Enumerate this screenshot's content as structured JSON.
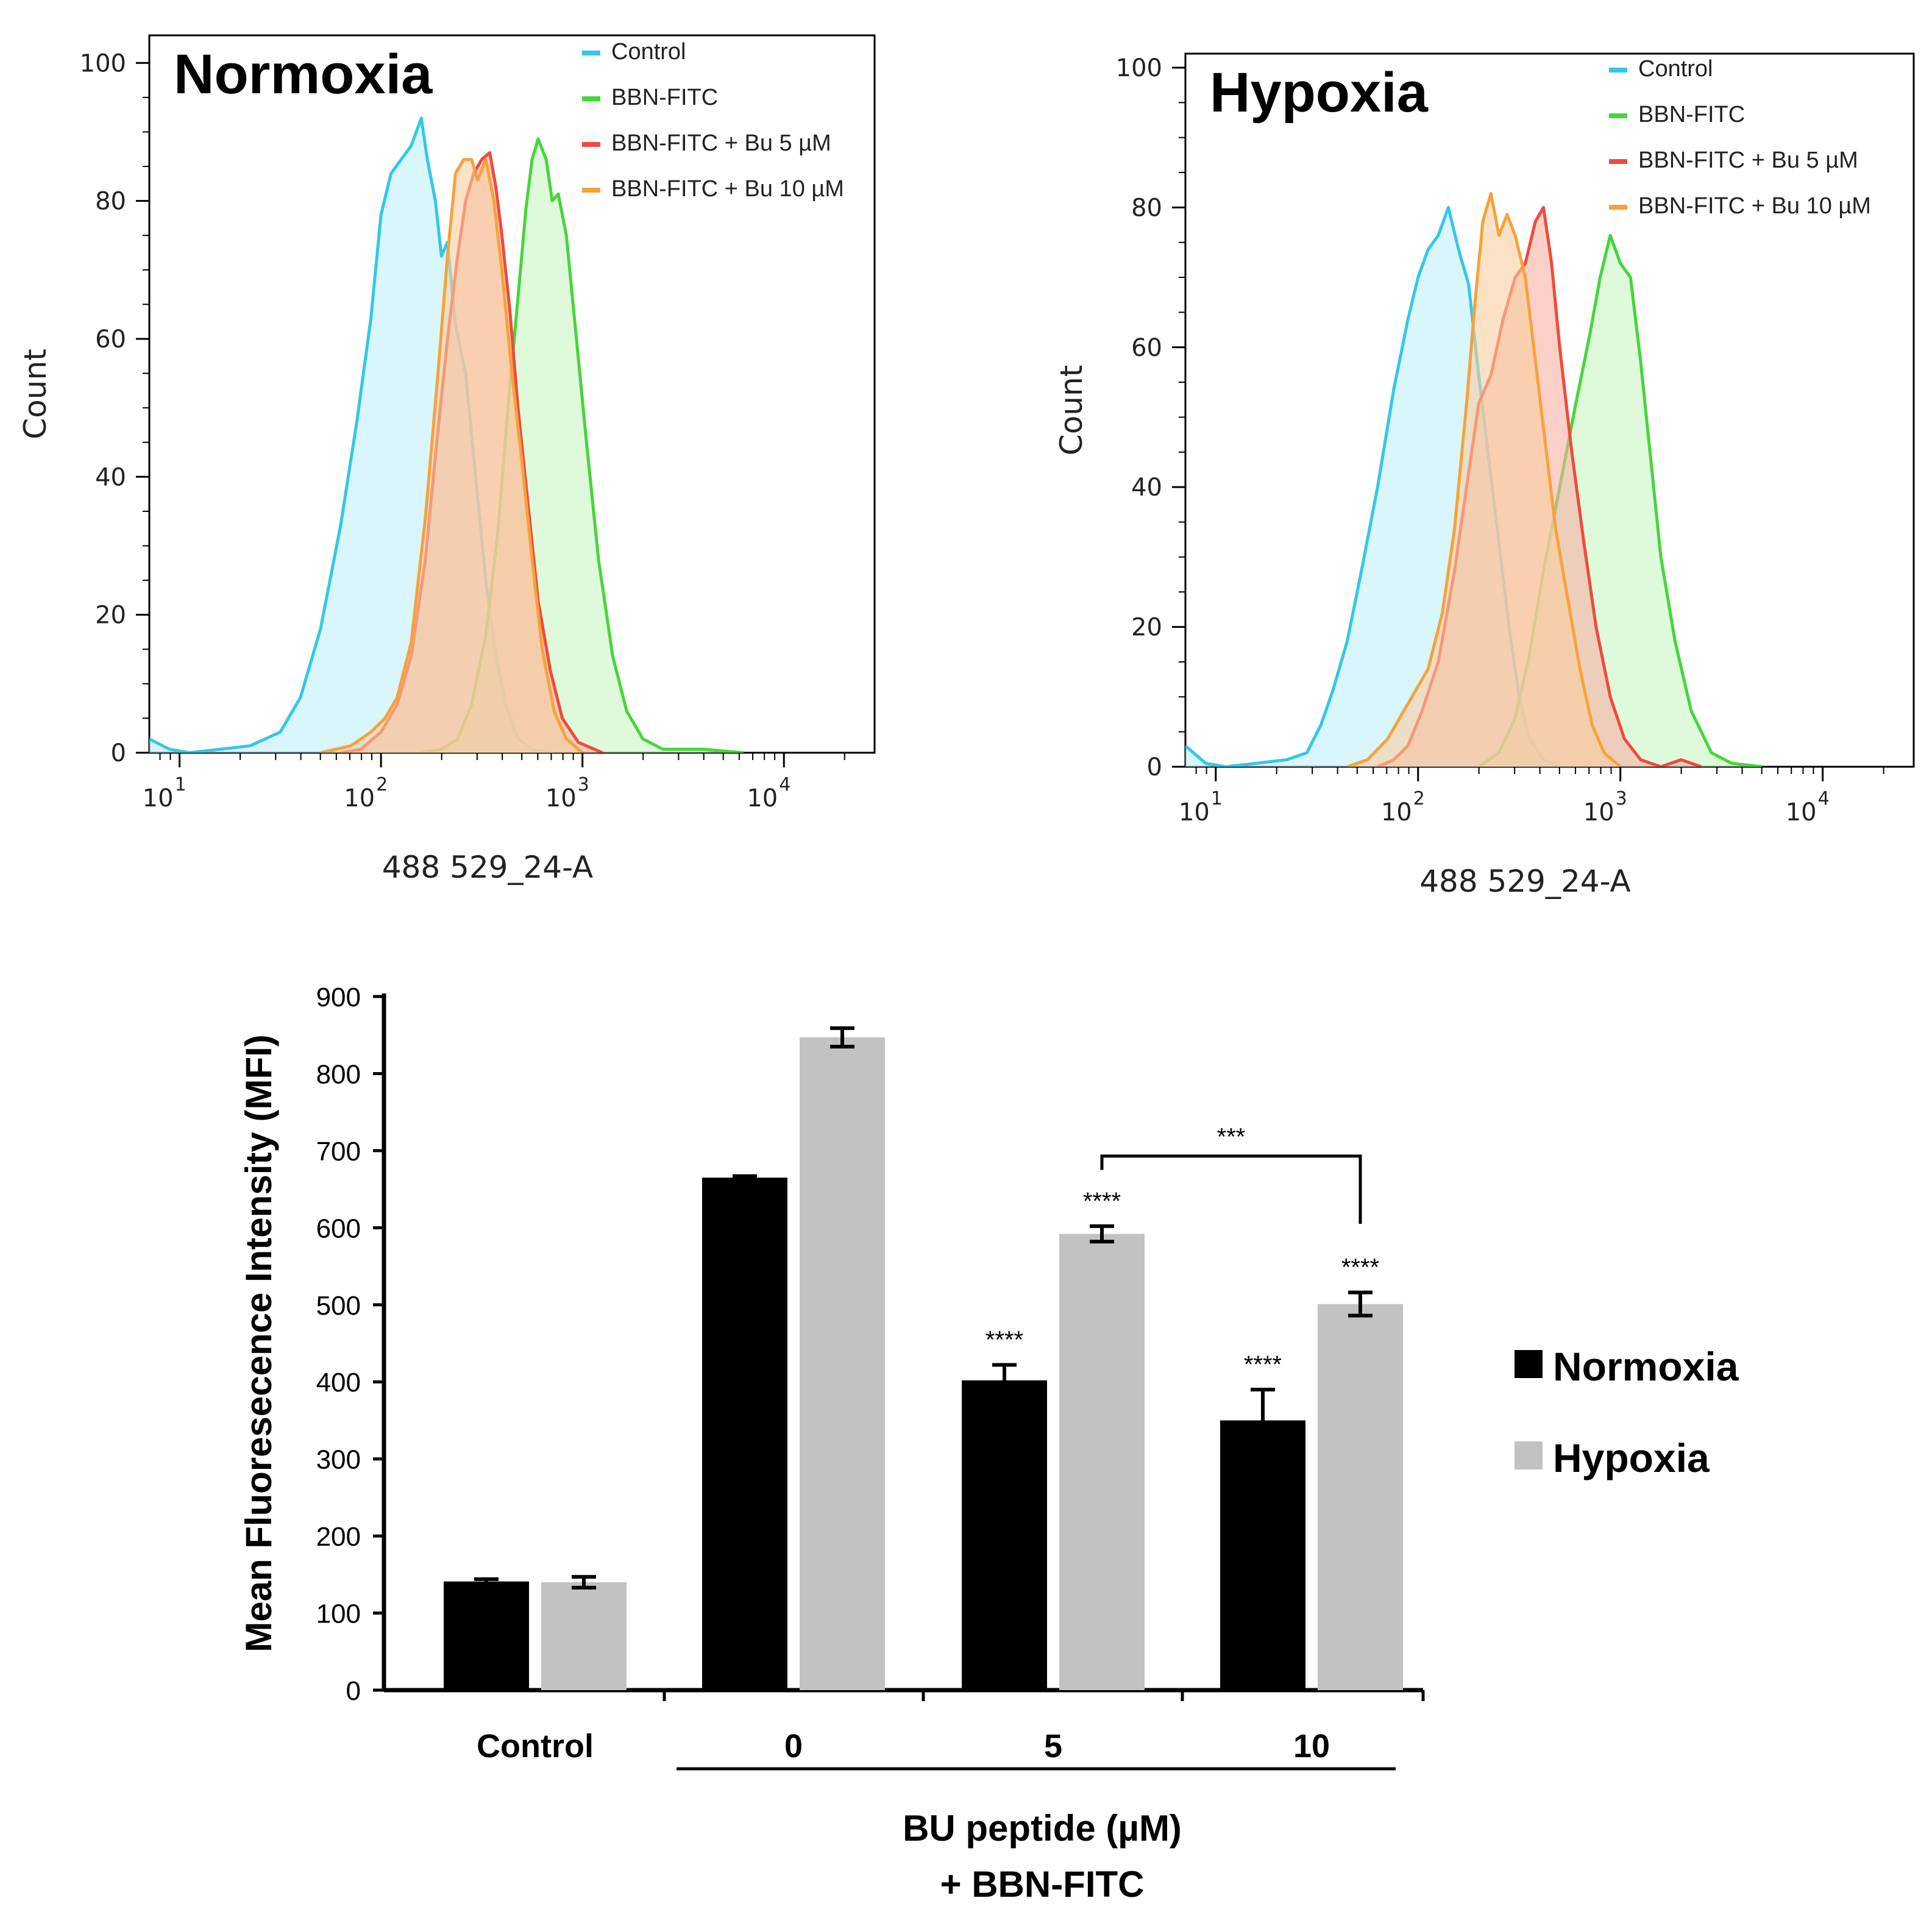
{
  "chart_data": [
    {
      "type": "area",
      "subtype": "flow-cytometry-histogram",
      "title": "Normoxia",
      "xlabel": "488 529_24-A",
      "ylabel": "Count",
      "xscale": "log",
      "xlim_log10": [
        0.85,
        4.45
      ],
      "ylim": [
        0,
        104
      ],
      "yticks": [
        0,
        20,
        40,
        60,
        80,
        100
      ],
      "xticks": [
        {
          "base": "10",
          "exp": "1"
        },
        {
          "base": "10",
          "exp": "2"
        },
        {
          "base": "10",
          "exp": "3"
        },
        {
          "base": "10",
          "exp": "4"
        }
      ],
      "legend_position": "top-right",
      "series": [
        {
          "name": "Control",
          "color": "#33c7e8",
          "fill": "#bff0fb",
          "points": [
            [
              0.85,
              2
            ],
            [
              0.95,
              0.5
            ],
            [
              1.05,
              0
            ],
            [
              1.2,
              0.5
            ],
            [
              1.35,
              1
            ],
            [
              1.5,
              3
            ],
            [
              1.6,
              8
            ],
            [
              1.7,
              18
            ],
            [
              1.8,
              33
            ],
            [
              1.88,
              48
            ],
            [
              1.95,
              63
            ],
            [
              2.0,
              78
            ],
            [
              2.05,
              84
            ],
            [
              2.1,
              86
            ],
            [
              2.15,
              88
            ],
            [
              2.2,
              92
            ],
            [
              2.23,
              86
            ],
            [
              2.27,
              80
            ],
            [
              2.3,
              72
            ],
            [
              2.33,
              74
            ],
            [
              2.37,
              62
            ],
            [
              2.42,
              55
            ],
            [
              2.47,
              40
            ],
            [
              2.52,
              25
            ],
            [
              2.57,
              14
            ],
            [
              2.62,
              7
            ],
            [
              2.68,
              2
            ],
            [
              2.75,
              0.5
            ],
            [
              2.85,
              0
            ]
          ]
        },
        {
          "name": "BBN-FITC",
          "color": "#45d63a",
          "fill": "#c9f5c3",
          "points": [
            [
              2.2,
              0
            ],
            [
              2.3,
              0.5
            ],
            [
              2.38,
              2
            ],
            [
              2.45,
              7
            ],
            [
              2.52,
              17
            ],
            [
              2.58,
              32
            ],
            [
              2.63,
              50
            ],
            [
              2.68,
              66
            ],
            [
              2.72,
              79
            ],
            [
              2.75,
              86
            ],
            [
              2.78,
              89
            ],
            [
              2.82,
              86
            ],
            [
              2.85,
              80
            ],
            [
              2.88,
              81
            ],
            [
              2.92,
              75
            ],
            [
              2.97,
              60
            ],
            [
              3.02,
              45
            ],
            [
              3.08,
              28
            ],
            [
              3.15,
              14
            ],
            [
              3.22,
              6
            ],
            [
              3.3,
              2
            ],
            [
              3.4,
              0.5
            ],
            [
              3.6,
              0.5
            ],
            [
              3.8,
              0
            ]
          ]
        },
        {
          "name": "BBN-FITC + Bu 5 µM",
          "color": "#f04a3e",
          "fill": "#f6b1a4",
          "points": [
            [
              1.8,
              0
            ],
            [
              1.9,
              0.5
            ],
            [
              2.0,
              3
            ],
            [
              2.08,
              7
            ],
            [
              2.15,
              14
            ],
            [
              2.22,
              28
            ],
            [
              2.28,
              46
            ],
            [
              2.33,
              60
            ],
            [
              2.38,
              72
            ],
            [
              2.42,
              80
            ],
            [
              2.46,
              84
            ],
            [
              2.5,
              86
            ],
            [
              2.54,
              87
            ],
            [
              2.57,
              82
            ],
            [
              2.6,
              75
            ],
            [
              2.64,
              64
            ],
            [
              2.68,
              50
            ],
            [
              2.73,
              36
            ],
            [
              2.78,
              22
            ],
            [
              2.84,
              12
            ],
            [
              2.9,
              5
            ],
            [
              2.98,
              1.5
            ],
            [
              3.1,
              0
            ]
          ]
        },
        {
          "name": "BBN-FITC + Bu 10 µM",
          "color": "#f7a23b",
          "fill": "#f9cfa0",
          "points": [
            [
              1.7,
              0
            ],
            [
              1.85,
              1
            ],
            [
              1.95,
              3
            ],
            [
              2.02,
              5
            ],
            [
              2.08,
              8
            ],
            [
              2.15,
              16
            ],
            [
              2.22,
              34
            ],
            [
              2.28,
              54
            ],
            [
              2.33,
              72
            ],
            [
              2.37,
              84
            ],
            [
              2.41,
              86
            ],
            [
              2.45,
              86
            ],
            [
              2.48,
              83
            ],
            [
              2.52,
              86
            ],
            [
              2.56,
              80
            ],
            [
              2.6,
              70
            ],
            [
              2.65,
              55
            ],
            [
              2.7,
              42
            ],
            [
              2.75,
              28
            ],
            [
              2.8,
              15
            ],
            [
              2.86,
              6
            ],
            [
              2.92,
              2
            ],
            [
              3.0,
              0
            ]
          ]
        }
      ]
    },
    {
      "type": "area",
      "subtype": "flow-cytometry-histogram",
      "title": "Hypoxia",
      "xlabel": "488 529_24-A",
      "ylabel": "Count",
      "xscale": "log",
      "xlim_log10": [
        0.85,
        4.45
      ],
      "ylim": [
        0,
        102
      ],
      "yticks": [
        0,
        20,
        40,
        60,
        80,
        100
      ],
      "xticks": [
        {
          "base": "10",
          "exp": "1"
        },
        {
          "base": "10",
          "exp": "2"
        },
        {
          "base": "10",
          "exp": "3"
        },
        {
          "base": "10",
          "exp": "4"
        }
      ],
      "legend_position": "top-right",
      "series": [
        {
          "name": "Control",
          "color": "#33c7e8",
          "fill": "#bff0fb",
          "points": [
            [
              0.85,
              3
            ],
            [
              0.95,
              0.5
            ],
            [
              1.05,
              0
            ],
            [
              1.2,
              0.5
            ],
            [
              1.35,
              1
            ],
            [
              1.45,
              2
            ],
            [
              1.52,
              6
            ],
            [
              1.58,
              11
            ],
            [
              1.65,
              18
            ],
            [
              1.72,
              28
            ],
            [
              1.8,
              40
            ],
            [
              1.88,
              54
            ],
            [
              1.95,
              64
            ],
            [
              2.0,
              70
            ],
            [
              2.05,
              74
            ],
            [
              2.1,
              76
            ],
            [
              2.15,
              80
            ],
            [
              2.2,
              74
            ],
            [
              2.25,
              69
            ],
            [
              2.3,
              56
            ],
            [
              2.35,
              44
            ],
            [
              2.4,
              32
            ],
            [
              2.45,
              20
            ],
            [
              2.5,
              10
            ],
            [
              2.55,
              4
            ],
            [
              2.62,
              1
            ],
            [
              2.7,
              0
            ]
          ]
        },
        {
          "name": "BBN-FITC",
          "color": "#45d63a",
          "fill": "#c9f5c3",
          "points": [
            [
              2.3,
              0
            ],
            [
              2.4,
              2
            ],
            [
              2.48,
              7
            ],
            [
              2.55,
              16
            ],
            [
              2.62,
              28
            ],
            [
              2.7,
              40
            ],
            [
              2.78,
              52
            ],
            [
              2.85,
              62
            ],
            [
              2.9,
              70
            ],
            [
              2.95,
              76
            ],
            [
              3.0,
              72
            ],
            [
              3.05,
              70
            ],
            [
              3.1,
              58
            ],
            [
              3.15,
              44
            ],
            [
              3.2,
              30
            ],
            [
              3.27,
              18
            ],
            [
              3.35,
              8
            ],
            [
              3.45,
              2
            ],
            [
              3.55,
              0.5
            ],
            [
              3.7,
              0
            ]
          ]
        },
        {
          "name": "BBN-FITC + Bu 5 µM",
          "color": "#f04a3e",
          "fill": "#f6b1a4",
          "points": [
            [
              1.8,
              0
            ],
            [
              1.88,
              1
            ],
            [
              1.95,
              3
            ],
            [
              2.02,
              8
            ],
            [
              2.1,
              15
            ],
            [
              2.18,
              28
            ],
            [
              2.25,
              42
            ],
            [
              2.3,
              52
            ],
            [
              2.36,
              56
            ],
            [
              2.42,
              64
            ],
            [
              2.48,
              70
            ],
            [
              2.53,
              72
            ],
            [
              2.58,
              78
            ],
            [
              2.62,
              80
            ],
            [
              2.66,
              72
            ],
            [
              2.7,
              60
            ],
            [
              2.76,
              45
            ],
            [
              2.82,
              32
            ],
            [
              2.88,
              20
            ],
            [
              2.95,
              10
            ],
            [
              3.02,
              4
            ],
            [
              3.1,
              1
            ],
            [
              3.2,
              0
            ],
            [
              3.3,
              1
            ],
            [
              3.4,
              0
            ]
          ]
        },
        {
          "name": "BBN-FITC + Bu 10 µM",
          "color": "#f7a23b",
          "fill": "#f9cfa0",
          "points": [
            [
              1.65,
              0
            ],
            [
              1.75,
              1
            ],
            [
              1.85,
              4
            ],
            [
              1.95,
              9
            ],
            [
              2.05,
              14
            ],
            [
              2.12,
              22
            ],
            [
              2.18,
              34
            ],
            [
              2.24,
              52
            ],
            [
              2.28,
              66
            ],
            [
              2.32,
              78
            ],
            [
              2.36,
              82
            ],
            [
              2.4,
              76
            ],
            [
              2.44,
              79
            ],
            [
              2.48,
              76
            ],
            [
              2.53,
              70
            ],
            [
              2.58,
              58
            ],
            [
              2.63,
              46
            ],
            [
              2.68,
              34
            ],
            [
              2.74,
              24
            ],
            [
              2.8,
              14
            ],
            [
              2.86,
              6
            ],
            [
              2.92,
              2
            ],
            [
              3.0,
              0
            ]
          ]
        }
      ]
    },
    {
      "type": "bar",
      "xlabel": "BU peptide (µM)",
      "xlabel_line2": "+ BBN-FITC",
      "ylabel": "Mean Fluoresecence Intensity (MFI)",
      "ylim": [
        0,
        900
      ],
      "yticks": [
        0,
        100,
        200,
        300,
        400,
        500,
        600,
        700,
        800,
        900
      ],
      "categories": [
        "Control",
        "0",
        "5",
        "10"
      ],
      "legend_position": "right",
      "series": [
        {
          "name": "Normoxia",
          "color": "#000000",
          "values": [
            141,
            665,
            402,
            350
          ],
          "errors": [
            3,
            2,
            20,
            40
          ]
        },
        {
          "name": "Hypoxia",
          "color": "#c2c2c2",
          "values": [
            140,
            847,
            592,
            501
          ],
          "errors": [
            7,
            12,
            10,
            15
          ]
        }
      ],
      "annotations": [
        {
          "category": "5",
          "series": "Normoxia",
          "text": "****"
        },
        {
          "category": "5",
          "series": "Hypoxia",
          "text": "****"
        },
        {
          "category": "10",
          "series": "Normoxia",
          "text": "****"
        },
        {
          "category": "10",
          "series": "Hypoxia",
          "text": "****"
        }
      ],
      "bracket": {
        "from": {
          "category": "5",
          "series": "Hypoxia"
        },
        "to": {
          "category": "10",
          "series": "Hypoxia"
        },
        "text": "***"
      }
    }
  ]
}
